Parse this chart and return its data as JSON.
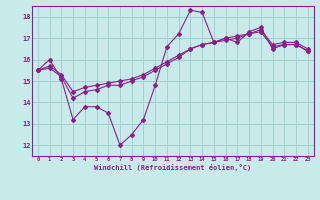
{
  "xlabel": "Windchill (Refroidissement éolien,°C)",
  "bg_color": "#c8eaea",
  "grid_color": "#a0d0d0",
  "line_color": "#882288",
  "xlim": [
    -0.5,
    23.5
  ],
  "ylim": [
    11.5,
    18.5
  ],
  "xticks": [
    0,
    1,
    2,
    3,
    4,
    5,
    6,
    7,
    8,
    9,
    10,
    11,
    12,
    13,
    14,
    15,
    16,
    17,
    18,
    19,
    20,
    21,
    22,
    23
  ],
  "yticks": [
    12,
    13,
    14,
    15,
    16,
    17,
    18
  ],
  "line1_x": [
    0,
    1,
    2,
    3,
    4,
    5,
    6,
    7,
    8,
    9,
    10,
    11,
    12,
    13,
    14,
    15,
    16,
    17,
    18,
    19,
    20,
    21,
    22,
    23
  ],
  "line1_y": [
    15.5,
    16.0,
    15.1,
    13.2,
    13.8,
    13.8,
    13.5,
    12.0,
    12.5,
    13.2,
    14.8,
    16.6,
    17.2,
    18.3,
    18.2,
    16.8,
    17.0,
    16.8,
    17.3,
    17.5,
    16.5,
    16.7,
    16.7,
    16.4
  ],
  "line2_x": [
    0,
    1,
    2,
    3,
    4,
    5,
    6,
    7,
    8,
    9,
    10,
    11,
    12,
    13,
    14,
    15,
    16,
    17,
    18,
    19,
    20,
    21,
    22,
    23
  ],
  "line2_y": [
    15.5,
    15.7,
    15.3,
    14.5,
    14.7,
    14.8,
    14.9,
    15.0,
    15.1,
    15.3,
    15.6,
    15.9,
    16.2,
    16.5,
    16.7,
    16.8,
    17.0,
    17.1,
    17.2,
    17.4,
    16.7,
    16.8,
    16.8,
    16.5
  ],
  "line3_x": [
    0,
    1,
    2,
    3,
    4,
    5,
    6,
    7,
    8,
    9,
    10,
    11,
    12,
    13,
    14,
    15,
    16,
    17,
    18,
    19,
    20,
    21,
    22,
    23
  ],
  "line3_y": [
    15.5,
    15.6,
    15.2,
    14.2,
    14.5,
    14.6,
    14.8,
    14.8,
    15.0,
    15.2,
    15.5,
    15.8,
    16.1,
    16.5,
    16.7,
    16.8,
    16.9,
    17.0,
    17.2,
    17.3,
    16.6,
    16.7,
    16.7,
    16.4
  ]
}
